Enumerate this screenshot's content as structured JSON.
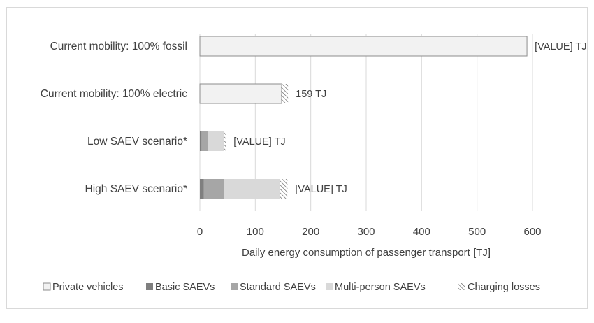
{
  "chart_data": {
    "type": "bar",
    "orientation": "horizontal",
    "stacked": true,
    "categories": [
      "Current mobility: 100% fossil",
      "Current mobility: 100% electric",
      "Low SAEV scenario*",
      "High SAEV scenario*"
    ],
    "series": [
      {
        "name": "Private vehicles",
        "values": [
          590,
          147,
          0,
          0
        ]
      },
      {
        "name": "Basic SAEVs",
        "values": [
          0,
          0,
          3,
          7
        ]
      },
      {
        "name": "Standard SAEVs",
        "values": [
          0,
          0,
          12,
          36
        ]
      },
      {
        "name": "Multi-person SAEVs",
        "values": [
          0,
          0,
          28,
          102
        ]
      },
      {
        "name": "Charging losses",
        "values": [
          0,
          12,
          4,
          13
        ]
      }
    ],
    "data_labels": [
      "[VALUE] TJ",
      "159 TJ",
      "[VALUE] TJ",
      "[VALUE] TJ"
    ],
    "xlabel": "Daily energy consumption of passenger transport [TJ]",
    "xlim": [
      0,
      600
    ],
    "xticks": [
      "0",
      "100",
      "200",
      "300",
      "400",
      "500",
      "600"
    ],
    "grid": true,
    "legend_position": "bottom",
    "colors": {
      "Private vehicles": "#f2f2f2",
      "Basic SAEVs": "#7f7f7f",
      "Standard SAEVs": "#a6a6a6",
      "Multi-person SAEVs": "#d9d9d9",
      "Charging losses": "hatched",
      "gridline": "#d9d9d9",
      "text": "#404040"
    }
  }
}
